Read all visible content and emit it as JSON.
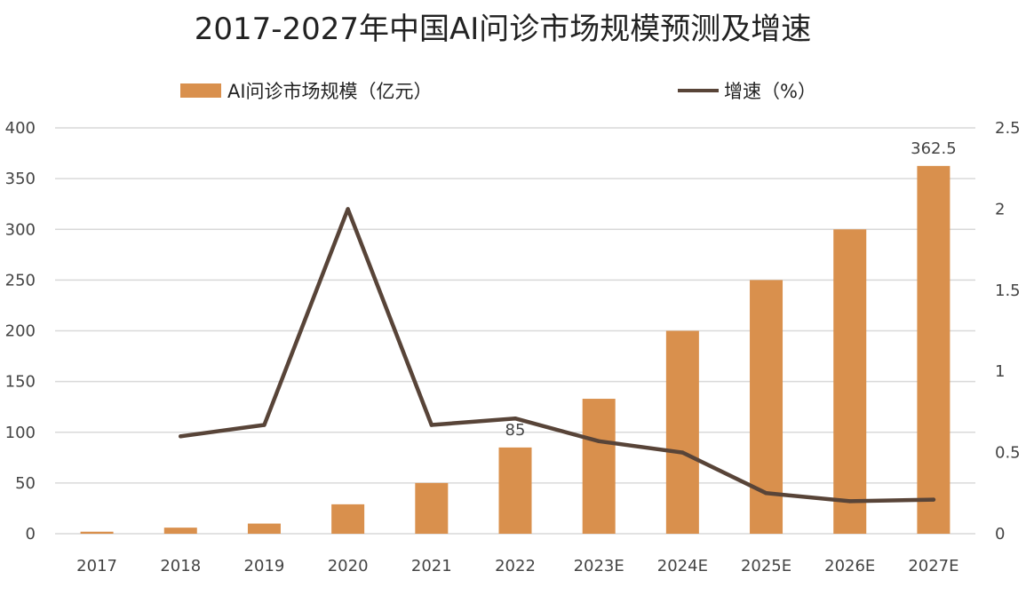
{
  "chart_data": {
    "type": "bar",
    "title": "2017-2027年中国AI问诊市场规模预测及增速",
    "categories": [
      "2017",
      "2018",
      "2019",
      "2020",
      "2021",
      "2022",
      "2023E",
      "2024E",
      "2025E",
      "2026E",
      "2027E"
    ],
    "series": [
      {
        "name": "AI问诊市场规模（亿元）",
        "type": "bar",
        "axis": "left",
        "color": "#D9904D",
        "values": [
          2,
          6,
          10,
          29,
          50,
          85,
          133,
          200,
          250,
          300,
          362.5
        ]
      },
      {
        "name": "增速（%）",
        "type": "line",
        "axis": "right",
        "color": "#584438",
        "values": [
          null,
          0.6,
          0.67,
          2.0,
          0.67,
          0.71,
          0.57,
          0.5,
          0.25,
          0.2,
          0.21
        ]
      }
    ],
    "data_labels": [
      {
        "category": "2022",
        "text": "85"
      },
      {
        "category": "2027E",
        "text": "362.5"
      }
    ],
    "ylim_left": [
      0,
      400
    ],
    "yticks_left": [
      "0",
      "50",
      "100",
      "150",
      "200",
      "250",
      "300",
      "350",
      "400"
    ],
    "ylim_right": [
      0,
      2.5
    ],
    "yticks_right": [
      "0",
      "0.5",
      "1",
      "1.5",
      "2",
      "2.5"
    ],
    "grid": true,
    "legend_position": "top"
  }
}
